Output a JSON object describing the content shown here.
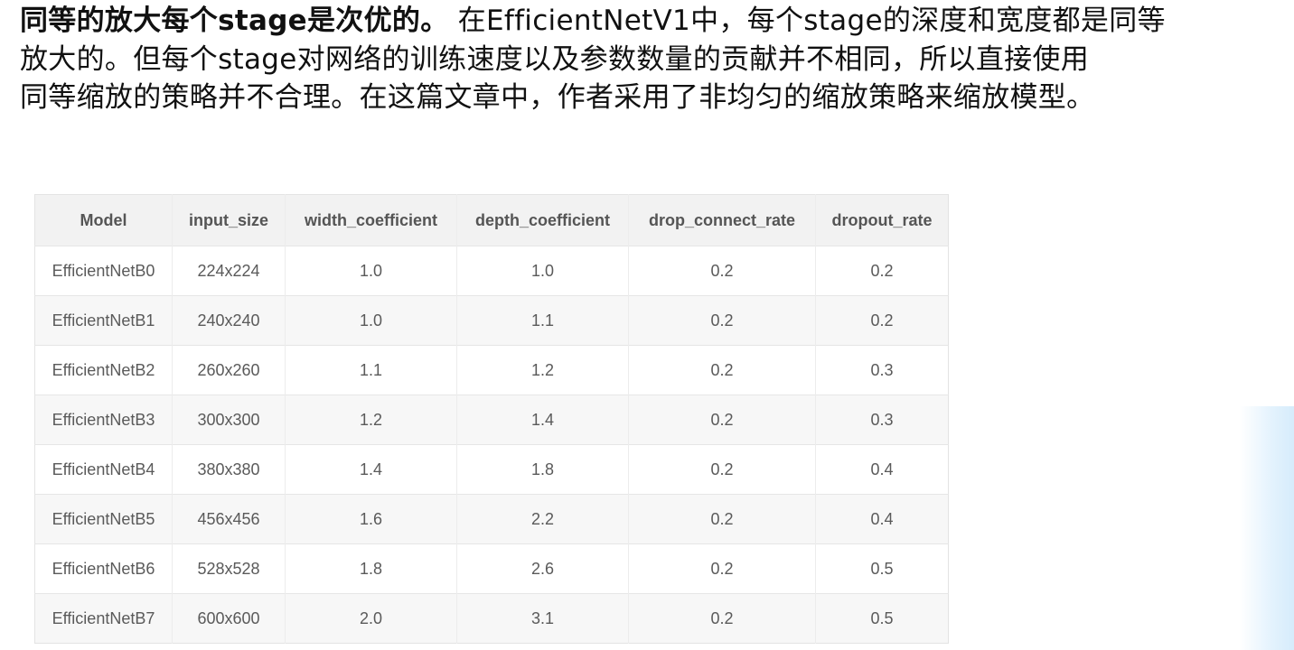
{
  "paragraph": {
    "line1_bold": "同等的放大每个stage是次优的。",
    "line1_rest": " 在EfficientNetV1中，每个stage的深度和宽度都是同等",
    "line2": "放大的。但每个stage对网络的训练速度以及参数数量的贡献并不相同，所以直接使用",
    "line3": "同等缩放的策略并不合理。在这篇文章中，作者采用了非均匀的缩放策略来缩放模型。"
  },
  "table": {
    "columns": [
      "Model",
      "input_size",
      "width_coefficient",
      "depth_coefficient",
      "drop_connect_rate",
      "dropout_rate"
    ],
    "rows": [
      [
        "EfficientNetB0",
        "224x224",
        "1.0",
        "1.0",
        "0.2",
        "0.2"
      ],
      [
        "EfficientNetB1",
        "240x240",
        "1.0",
        "1.1",
        "0.2",
        "0.2"
      ],
      [
        "EfficientNetB2",
        "260x260",
        "1.1",
        "1.2",
        "0.2",
        "0.3"
      ],
      [
        "EfficientNetB3",
        "300x300",
        "1.2",
        "1.4",
        "0.2",
        "0.3"
      ],
      [
        "EfficientNetB4",
        "380x380",
        "1.4",
        "1.8",
        "0.2",
        "0.4"
      ],
      [
        "EfficientNetB5",
        "456x456",
        "1.6",
        "2.2",
        "0.2",
        "0.4"
      ],
      [
        "EfficientNetB6",
        "528x528",
        "1.8",
        "2.6",
        "0.2",
        "0.5"
      ],
      [
        "EfficientNetB7",
        "600x600",
        "2.0",
        "3.1",
        "0.2",
        "0.5"
      ]
    ]
  }
}
